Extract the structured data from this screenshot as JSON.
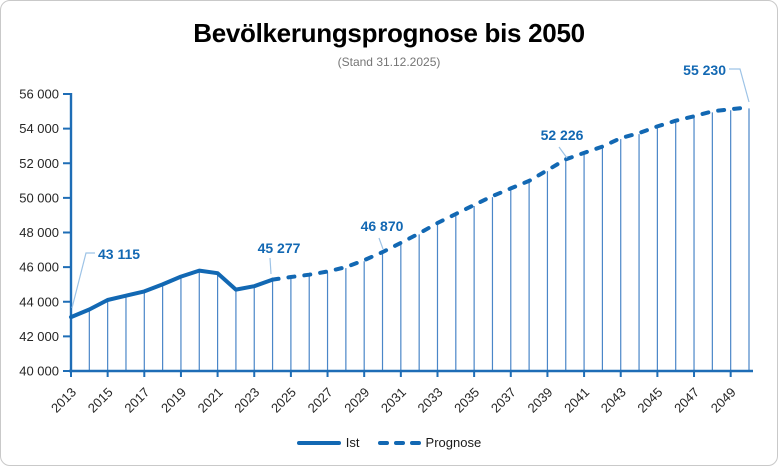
{
  "header": {
    "title": "Bevölkerungsprognose bis 2050",
    "subtitle": "(Stand 31.12.2025)"
  },
  "colors": {
    "line": "#1268b3",
    "drop_line": "#4a86c8",
    "leader": "#9dc3e6",
    "data_label": "#1268b3",
    "axis": "#1e6db6",
    "axis_text": "#262626",
    "subtitle_text": "#757575",
    "title_text": "#000000",
    "border": "#c9c9c9"
  },
  "chart_data": {
    "type": "line",
    "title": "Bevölkerungsprognose bis 2050",
    "subtitle": "(Stand 31.12.2025)",
    "grid": false,
    "legend_position": "bottom",
    "ylim": [
      40000,
      56000
    ],
    "ytick_step": 2000,
    "ytick_labels": [
      "40 000",
      "42 000",
      "44 000",
      "46 000",
      "48 000",
      "50 000",
      "52 000",
      "54 000",
      "56 000"
    ],
    "x_start": 2013,
    "x_end": 2050,
    "xtick_labels": [
      "2013",
      "2015",
      "2017",
      "2019",
      "2021",
      "2023",
      "2025",
      "2027",
      "2029",
      "2031",
      "2033",
      "2035",
      "2037",
      "2039",
      "2041",
      "2043",
      "2045",
      "2047",
      "2049"
    ],
    "series": [
      {
        "name": "Ist",
        "style": "solid",
        "start_year": 2013,
        "values": [
          43115,
          43550,
          44100,
          44350,
          44600,
          45000,
          45450,
          45800,
          45650,
          44700,
          44900,
          45277
        ]
      },
      {
        "name": "Prognose",
        "style": "dashed",
        "start_year": 2024,
        "values": [
          45277,
          45430,
          45560,
          45750,
          46000,
          46400,
          46870,
          47400,
          47950,
          48550,
          49070,
          49590,
          50100,
          50550,
          50980,
          51600,
          52226,
          52600,
          52960,
          53450,
          53740,
          54130,
          54460,
          54710,
          55000,
          55120,
          55230
        ]
      }
    ],
    "callouts": [
      {
        "year": 2013,
        "text": "43 115"
      },
      {
        "year": 2024,
        "text": "45 277"
      },
      {
        "year": 2030,
        "text": "46 870"
      },
      {
        "year": 2040,
        "text": "52 226"
      },
      {
        "year": 2050,
        "text": "55 230"
      }
    ]
  }
}
